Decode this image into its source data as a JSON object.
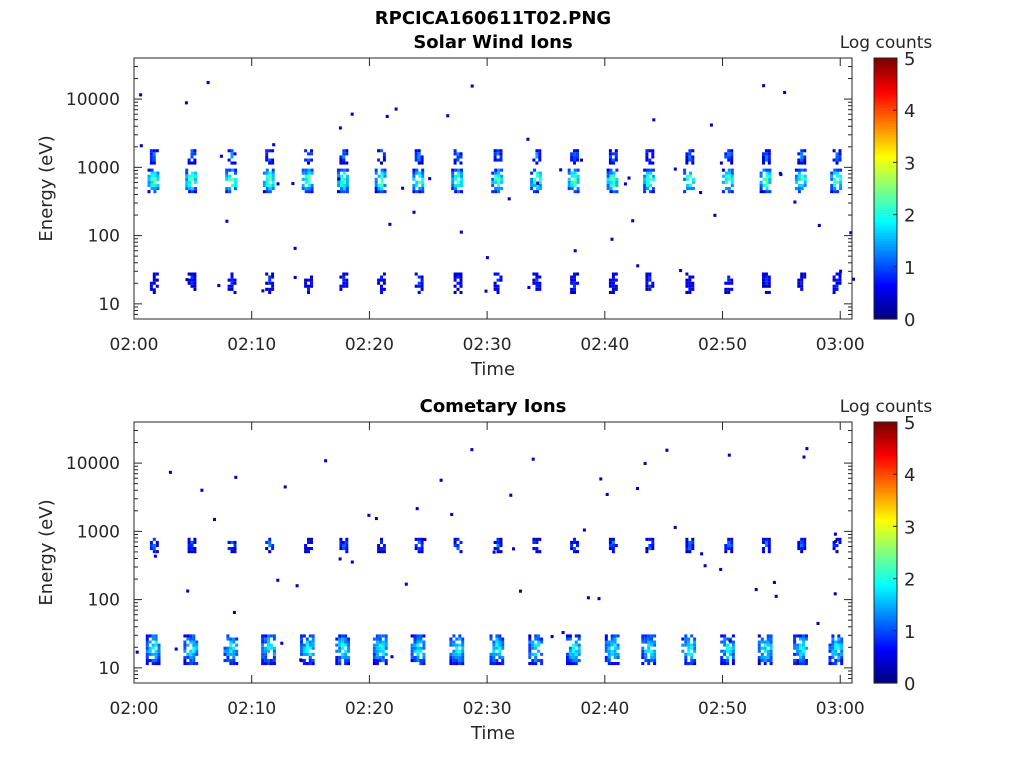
{
  "figure_title": "RPCICA160611T02.PNG",
  "chart_data": [
    {
      "type": "heatmap",
      "title": "Solar Wind Ions",
      "xlabel": "Time",
      "ylabel": "Energy (eV)",
      "xlim_minutes": [
        0,
        61
      ],
      "ylim": [
        6,
        40000
      ],
      "yscale": "log",
      "x_ticks": [
        {
          "v": 0,
          "label": "02:00"
        },
        {
          "v": 10,
          "label": "02:10"
        },
        {
          "v": 20,
          "label": "02:20"
        },
        {
          "v": 30,
          "label": "02:30"
        },
        {
          "v": 40,
          "label": "02:40"
        },
        {
          "v": 50,
          "label": "02:50"
        },
        {
          "v": 60,
          "label": "03:00"
        }
      ],
      "y_ticks": [
        {
          "v": 10,
          "label": "10"
        },
        {
          "v": 100,
          "label": "100"
        },
        {
          "v": 1000,
          "label": "1000"
        },
        {
          "v": 10000,
          "label": "10000"
        }
      ],
      "colorbar": {
        "label": "Log counts",
        "range": [
          0,
          5
        ],
        "ticks": [
          "0",
          "1",
          "2",
          "3",
          "4",
          "5"
        ]
      },
      "burst_times_minutes": [
        1.6,
        4.8,
        8.2,
        11.4,
        14.7,
        17.7,
        20.9,
        24.1,
        27.4,
        30.8,
        34.1,
        37.3,
        40.6,
        43.7,
        47.1,
        50.4,
        53.6,
        56.6,
        59.6
      ],
      "bands": [
        {
          "e_lo": 420,
          "e_hi": 900,
          "peak": 2.4,
          "width_min": 0.9
        },
        {
          "e_lo": 1100,
          "e_hi": 1800,
          "peak": 1.2,
          "width_min": 0.5
        },
        {
          "e_lo": 14,
          "e_hi": 28,
          "peak": 0.7,
          "width_min": 0.5
        }
      ],
      "scatter_points_log_count": 0.3,
      "seed": 7
    },
    {
      "type": "heatmap",
      "title": "Cometary Ions",
      "xlabel": "Time",
      "ylabel": "Energy (eV)",
      "xlim_minutes": [
        0,
        61
      ],
      "ylim": [
        6,
        40000
      ],
      "yscale": "log",
      "x_ticks": [
        {
          "v": 0,
          "label": "02:00"
        },
        {
          "v": 10,
          "label": "02:10"
        },
        {
          "v": 20,
          "label": "02:20"
        },
        {
          "v": 30,
          "label": "02:30"
        },
        {
          "v": 40,
          "label": "02:40"
        },
        {
          "v": 50,
          "label": "02:50"
        },
        {
          "v": 60,
          "label": "03:00"
        }
      ],
      "y_ticks": [
        {
          "v": 10,
          "label": "10"
        },
        {
          "v": 100,
          "label": "100"
        },
        {
          "v": 1000,
          "label": "1000"
        },
        {
          "v": 10000,
          "label": "10000"
        }
      ],
      "colorbar": {
        "label": "Log counts",
        "range": [
          0,
          5
        ],
        "ticks": [
          "0",
          "1",
          "2",
          "3",
          "4",
          "5"
        ]
      },
      "burst_times_minutes": [
        1.6,
        4.8,
        8.2,
        11.4,
        14.7,
        17.7,
        20.9,
        24.1,
        27.4,
        30.8,
        34.1,
        37.3,
        40.6,
        43.7,
        47.1,
        50.4,
        53.6,
        56.6,
        59.6
      ],
      "bands": [
        {
          "e_lo": 480,
          "e_hi": 750,
          "peak": 1.1,
          "width_min": 0.5
        },
        {
          "e_lo": 11,
          "e_hi": 30,
          "peak": 1.9,
          "width_min": 1.2
        }
      ],
      "scatter_points_log_count": 0.3,
      "seed": 13
    }
  ]
}
